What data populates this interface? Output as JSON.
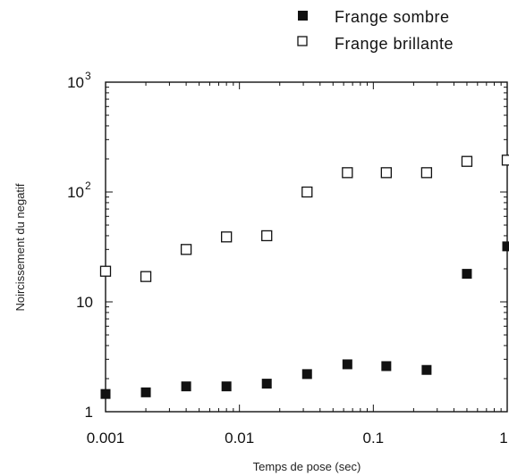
{
  "chart_data": {
    "type": "scatter",
    "x_scale": "log",
    "y_scale": "log",
    "xlim": [
      0.001,
      1
    ],
    "ylim": [
      1,
      1000
    ],
    "xlabel": "Temps de pose (sec)",
    "ylabel": "Noircissement du negatif",
    "x_ticks": [
      {
        "value": 0.001,
        "label": "0.001"
      },
      {
        "value": 0.01,
        "label": "0.01"
      },
      {
        "value": 0.1,
        "label": "0.1"
      },
      {
        "value": 1,
        "label": "1"
      }
    ],
    "y_ticks": [
      {
        "value": 1,
        "base": "1",
        "exp": ""
      },
      {
        "value": 10,
        "base": "10",
        "exp": ""
      },
      {
        "value": 100,
        "base": "10",
        "exp": "2"
      },
      {
        "value": 1000,
        "base": "10",
        "exp": "3"
      }
    ],
    "grid": false,
    "legend_position": "top-right",
    "series": [
      {
        "name": "Frange sombre",
        "marker": "filled-square",
        "color": "#111111",
        "x": [
          0.001,
          0.002,
          0.004,
          0.008,
          0.016,
          0.032,
          0.064,
          0.125,
          0.25,
          0.5,
          1
        ],
        "y": [
          1.45,
          1.5,
          1.7,
          1.7,
          1.8,
          2.2,
          2.7,
          2.6,
          2.4,
          18,
          32
        ]
      },
      {
        "name": "Frange brillante",
        "marker": "open-square",
        "color": "#111111",
        "x": [
          0.001,
          0.002,
          0.004,
          0.008,
          0.016,
          0.032,
          0.064,
          0.125,
          0.25,
          0.5,
          1
        ],
        "y": [
          19,
          17,
          30,
          39,
          40,
          100,
          150,
          150,
          150,
          190,
          195
        ]
      }
    ]
  }
}
